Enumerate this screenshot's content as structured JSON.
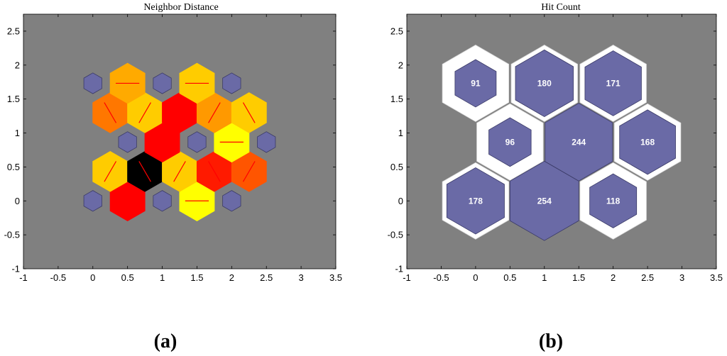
{
  "chart_data": [
    {
      "type": "hexbin",
      "title": "Neighbor Distance",
      "caption": "(a)",
      "xlim": [
        -1,
        3.5
      ],
      "ylim": [
        -1,
        2.75
      ],
      "xticks": [
        "-1",
        "-0.5",
        "0",
        "0.5",
        "1",
        "1.5",
        "2",
        "2.5",
        "3",
        "3.5"
      ],
      "yticks": [
        "-1",
        "-0.5",
        "0",
        "0.5",
        "1",
        "1.5",
        "2",
        "2.5"
      ],
      "background": "#808080",
      "neurons": [
        {
          "x": 0,
          "y": 0
        },
        {
          "x": 1,
          "y": 0
        },
        {
          "x": 2,
          "y": 0
        },
        {
          "x": 0.5,
          "y": 0.866
        },
        {
          "x": 1.5,
          "y": 0.866
        },
        {
          "x": 2.5,
          "y": 0.866
        },
        {
          "x": 0,
          "y": 1.732
        },
        {
          "x": 1,
          "y": 1.732
        },
        {
          "x": 2,
          "y": 1.732
        }
      ],
      "neuron_color": "#6a6aa6",
      "distance_cells": [
        {
          "x": 0.5,
          "y": 0,
          "color": "#ff0000",
          "angle": 0
        },
        {
          "x": 1.5,
          "y": 0,
          "color": "#ffff00",
          "angle": 0
        },
        {
          "x": 0.25,
          "y": 0.433,
          "color": "#ffcc00",
          "angle": 60
        },
        {
          "x": 0.75,
          "y": 0.433,
          "color": "#000000",
          "angle": 120
        },
        {
          "x": 1.25,
          "y": 0.433,
          "color": "#ffcc00",
          "angle": 60
        },
        {
          "x": 1.75,
          "y": 0.433,
          "color": "#ff1a00",
          "angle": 120
        },
        {
          "x": 2.25,
          "y": 0.433,
          "color": "#ff5500",
          "angle": 60
        },
        {
          "x": 1,
          "y": 0.866,
          "color": "#ff0000",
          "angle": 0
        },
        {
          "x": 2,
          "y": 0.866,
          "color": "#ffff00",
          "angle": 0
        },
        {
          "x": 0.25,
          "y": 1.299,
          "color": "#ff7700",
          "angle": 120
        },
        {
          "x": 0.75,
          "y": 1.299,
          "color": "#ffcc00",
          "angle": 60
        },
        {
          "x": 1.25,
          "y": 1.299,
          "color": "#ff0000",
          "angle": 120
        },
        {
          "x": 1.75,
          "y": 1.299,
          "color": "#ff9900",
          "angle": 60
        },
        {
          "x": 2.25,
          "y": 1.299,
          "color": "#ffcc00",
          "angle": 120
        },
        {
          "x": 0.5,
          "y": 1.732,
          "color": "#ffaa00",
          "angle": 0
        },
        {
          "x": 1.5,
          "y": 1.732,
          "color": "#ffcc00",
          "angle": 0
        }
      ]
    },
    {
      "type": "hexbin",
      "title": "Hit Count",
      "caption": "(b)",
      "xlim": [
        -1,
        3.5
      ],
      "ylim": [
        -1,
        2.75
      ],
      "xticks": [
        "-1",
        "-0.5",
        "0",
        "0.5",
        "1",
        "1.5",
        "2",
        "2.5",
        "3",
        "3.5"
      ],
      "yticks": [
        "-1",
        "-0.5",
        "0",
        "0.5",
        "1",
        "1.5",
        "2",
        "2.5"
      ],
      "background": "#808080",
      "neuron_color": "#6a6aa6",
      "cells": [
        {
          "x": 0,
          "y": 0,
          "hits": 178
        },
        {
          "x": 1,
          "y": 0,
          "hits": 254
        },
        {
          "x": 2,
          "y": 0,
          "hits": 118
        },
        {
          "x": 0.5,
          "y": 0.866,
          "hits": 96
        },
        {
          "x": 1.5,
          "y": 0.866,
          "hits": 244
        },
        {
          "x": 2.5,
          "y": 0.866,
          "hits": 168
        },
        {
          "x": 0,
          "y": 1.732,
          "hits": 91
        },
        {
          "x": 1,
          "y": 1.732,
          "hits": 180
        },
        {
          "x": 2,
          "y": 1.732,
          "hits": 171
        }
      ]
    }
  ]
}
